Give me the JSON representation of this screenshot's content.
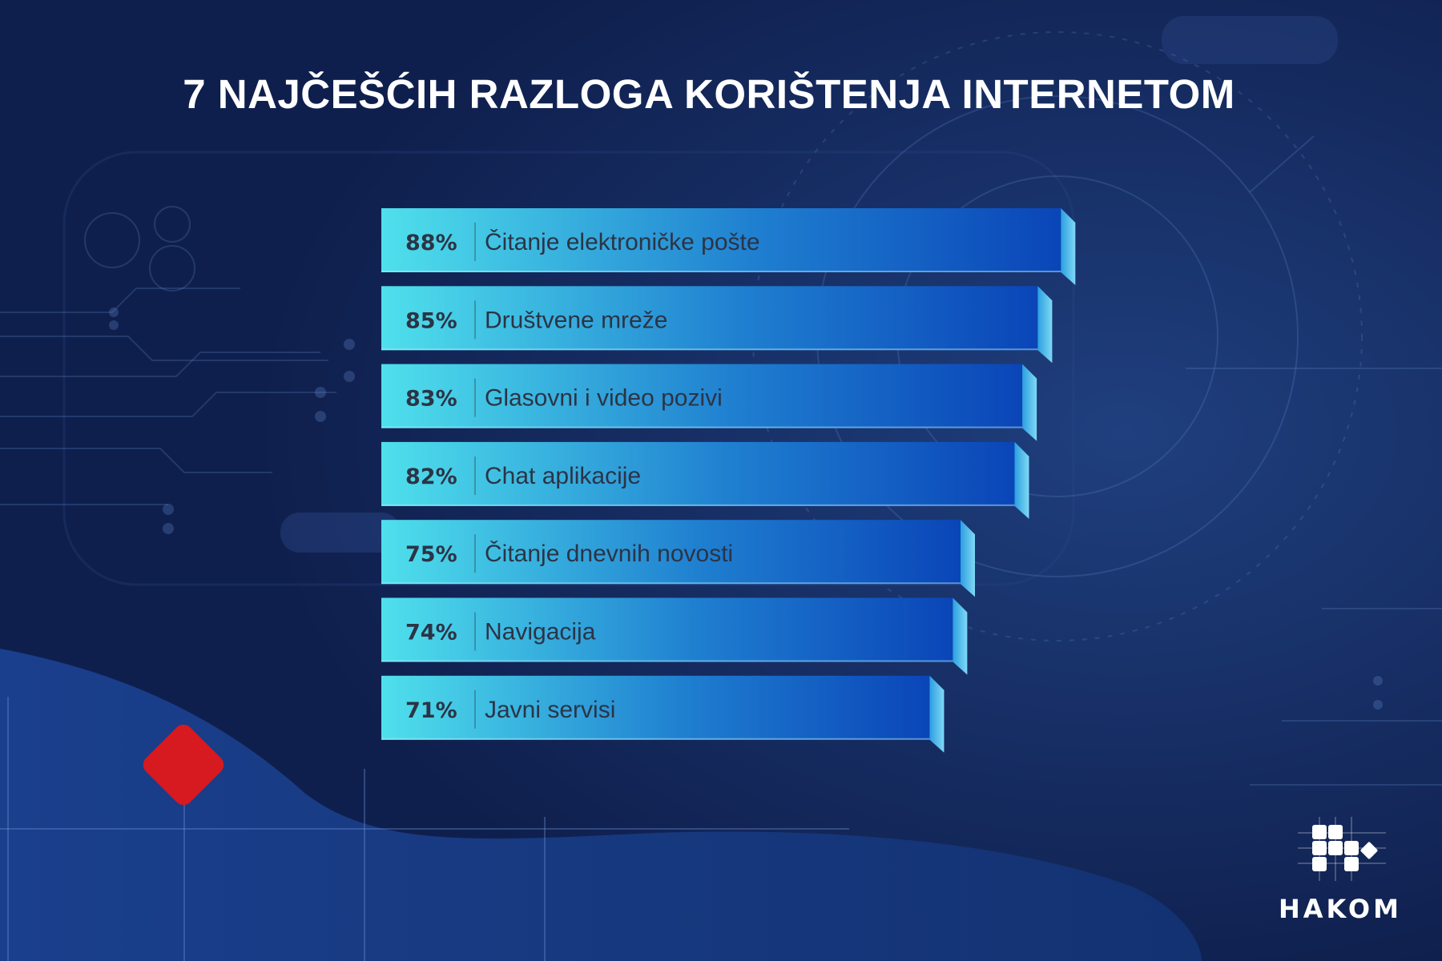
{
  "title": "7 NAJČEŠĆIH RAZLOGA KORIŠTENJA INTERNETOM",
  "logo": {
    "text": "HAKOM",
    "icon": "hakom-logo-icon"
  },
  "decorations": {
    "accent_diamond": "#d71920"
  },
  "colors": {
    "background": "#0f1f4d",
    "bar_left": "#4fe0ec",
    "bar_right": "#0a45b8",
    "label_text": "#2b3446",
    "title_text": "#ffffff"
  },
  "chart_data": {
    "type": "bar",
    "orientation": "horizontal",
    "title": "7 NAJČEŠĆIH RAZLOGA KORIŠTENJA INTERNETOM",
    "unit": "%",
    "xlim": [
      0,
      100
    ],
    "grid": false,
    "legend": "none",
    "categories": [
      "Čitanje elektroničke pošte",
      "Društvene mreže",
      "Glasovni i video pozivi",
      "Chat aplikacije",
      "Čitanje dnevnih novosti",
      "Navigacija",
      "Javni servisi"
    ],
    "values": [
      88,
      85,
      83,
      82,
      75,
      74,
      71
    ],
    "value_labels": [
      "88%",
      "85%",
      "83%",
      "82%",
      "75%",
      "74%",
      "71%"
    ]
  }
}
